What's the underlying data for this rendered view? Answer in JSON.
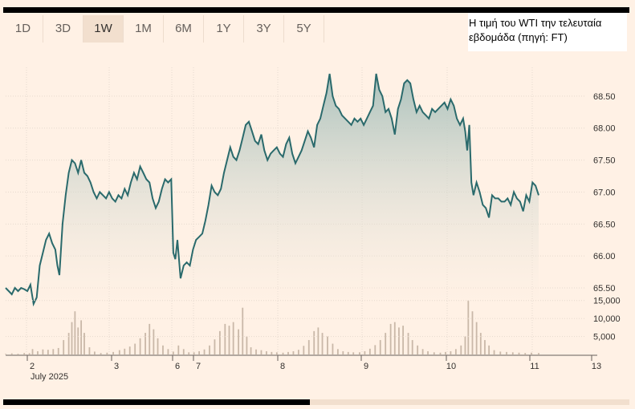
{
  "range_tabs": [
    "1D",
    "3D",
    "1W",
    "1M",
    "6M",
    "1Y",
    "3Y",
    "5Y"
  ],
  "active_tab": "1W",
  "caption": {
    "line1": "Η τιμή του WTI την τελευταία",
    "line2": "εβδομάδα (πηγή: FT)"
  },
  "colors": {
    "line": "#2a6a6c",
    "fill_top": "#a6bfba",
    "volume": "#c9b8a8",
    "accent_tab": "#f2dfce"
  },
  "chart_data": {
    "type": "area",
    "ylim": [
      65.35,
      68.95
    ],
    "y_ticks": [
      65.5,
      66.0,
      66.5,
      67.0,
      67.5,
      68.0,
      68.5
    ],
    "y_tick_labels": [
      "65.50",
      "66.00",
      "66.50",
      "67.00",
      "67.50",
      "68.00",
      "68.50"
    ],
    "x_tick_labels": [
      "2",
      "3",
      "6",
      "7",
      "8",
      "9",
      "10",
      "11",
      "13"
    ],
    "x_sub_label": "July 2025",
    "series": [
      {
        "points": [
          [
            0,
            65.5
          ],
          [
            1.5,
            65.45
          ],
          [
            3,
            65.4
          ],
          [
            4.5,
            65.5
          ],
          [
            6,
            65.45
          ],
          [
            7.5,
            65.5
          ],
          [
            9,
            65.48
          ],
          [
            10.5,
            65.45
          ],
          [
            12,
            65.55
          ],
          [
            13.5,
            65.25
          ],
          [
            15,
            65.35
          ],
          [
            16.5,
            65.85
          ],
          [
            18,
            66.05
          ],
          [
            19.5,
            66.25
          ],
          [
            21,
            66.35
          ],
          [
            22.5,
            66.2
          ],
          [
            24,
            66.1
          ],
          [
            25,
            65.85
          ],
          [
            26,
            65.7
          ],
          [
            27.5,
            66.5
          ],
          [
            29,
            66.95
          ],
          [
            30.5,
            67.3
          ],
          [
            32,
            67.5
          ],
          [
            33.5,
            67.45
          ],
          [
            35,
            67.3
          ],
          [
            36.5,
            67.5
          ],
          [
            38,
            67.3
          ],
          [
            39.5,
            67.25
          ],
          [
            41,
            67.15
          ],
          [
            42.5,
            67.0
          ],
          [
            44,
            66.9
          ],
          [
            45.5,
            67.0
          ],
          [
            47,
            66.95
          ],
          [
            48.5,
            66.9
          ],
          [
            50,
            67.0
          ],
          [
            51.5,
            66.9
          ],
          [
            53,
            66.85
          ],
          [
            54.5,
            66.95
          ],
          [
            56,
            66.9
          ],
          [
            57.5,
            67.05
          ],
          [
            59,
            66.95
          ],
          [
            60.5,
            67.15
          ],
          [
            62,
            67.3
          ],
          [
            63.5,
            67.2
          ],
          [
            65,
            67.4
          ],
          [
            66.5,
            67.3
          ],
          [
            68,
            67.2
          ],
          [
            69.5,
            67.15
          ],
          [
            71,
            66.9
          ],
          [
            72.5,
            66.75
          ],
          [
            74,
            66.85
          ],
          [
            75.5,
            67.05
          ],
          [
            77,
            67.2
          ],
          [
            78.5,
            67.15
          ],
          [
            80,
            67.2
          ],
          [
            81,
            66.05
          ],
          [
            82,
            65.95
          ],
          [
            83,
            66.25
          ],
          [
            84.5,
            65.65
          ],
          [
            86,
            65.85
          ],
          [
            87.5,
            65.9
          ],
          [
            89,
            65.85
          ],
          [
            90.5,
            66.1
          ],
          [
            92,
            66.25
          ],
          [
            93.5,
            66.3
          ],
          [
            95,
            66.35
          ],
          [
            96.5,
            66.55
          ],
          [
            98,
            66.8
          ],
          [
            99.5,
            67.1
          ],
          [
            101,
            67.0
          ],
          [
            102.5,
            66.95
          ],
          [
            104,
            67.05
          ],
          [
            105.5,
            67.3
          ],
          [
            107,
            67.5
          ],
          [
            108.5,
            67.7
          ],
          [
            110,
            67.55
          ],
          [
            111.5,
            67.5
          ],
          [
            113,
            67.65
          ],
          [
            114.5,
            67.85
          ],
          [
            116,
            68.05
          ],
          [
            117.5,
            68.1
          ],
          [
            119,
            67.95
          ],
          [
            120.5,
            67.8
          ],
          [
            122,
            67.75
          ],
          [
            123.5,
            67.9
          ],
          [
            125,
            67.65
          ],
          [
            126.5,
            67.5
          ],
          [
            128,
            67.6
          ],
          [
            129.5,
            67.65
          ],
          [
            131,
            67.7
          ],
          [
            132.5,
            67.6
          ],
          [
            134,
            67.55
          ],
          [
            135.5,
            67.75
          ],
          [
            137,
            67.85
          ],
          [
            138.5,
            67.6
          ],
          [
            140,
            67.45
          ],
          [
            141.5,
            67.55
          ],
          [
            143,
            67.65
          ],
          [
            144.5,
            67.8
          ],
          [
            146,
            67.95
          ],
          [
            147.5,
            67.85
          ],
          [
            149,
            67.7
          ],
          [
            150.5,
            68.05
          ],
          [
            152,
            68.15
          ],
          [
            153.5,
            68.35
          ],
          [
            155,
            68.55
          ],
          [
            156.5,
            68.85
          ],
          [
            158,
            68.5
          ],
          [
            159.5,
            68.35
          ],
          [
            161,
            68.3
          ],
          [
            162.5,
            68.2
          ],
          [
            164,
            68.15
          ],
          [
            165.5,
            68.1
          ],
          [
            167,
            68.05
          ],
          [
            168.5,
            68.15
          ],
          [
            170,
            68.1
          ],
          [
            171.5,
            68.15
          ],
          [
            173,
            68.05
          ],
          [
            174.5,
            68.15
          ],
          [
            176,
            68.25
          ],
          [
            177.5,
            68.35
          ],
          [
            179,
            68.85
          ],
          [
            180.5,
            68.6
          ],
          [
            182,
            68.5
          ],
          [
            183.5,
            68.25
          ],
          [
            185,
            68.3
          ],
          [
            186.5,
            68.15
          ],
          [
            188,
            67.9
          ],
          [
            189.5,
            68.3
          ],
          [
            191,
            68.45
          ],
          [
            192.5,
            68.7
          ],
          [
            194,
            68.75
          ],
          [
            195.5,
            68.7
          ],
          [
            197,
            68.45
          ],
          [
            198.5,
            68.25
          ],
          [
            200,
            68.35
          ],
          [
            201.5,
            68.25
          ],
          [
            203,
            68.2
          ],
          [
            204.5,
            68.15
          ],
          [
            206,
            68.3
          ],
          [
            207.5,
            68.25
          ],
          [
            209,
            68.3
          ],
          [
            210.5,
            68.35
          ],
          [
            212,
            68.4
          ],
          [
            213.5,
            68.3
          ],
          [
            215,
            68.45
          ],
          [
            216.5,
            68.35
          ],
          [
            218,
            68.15
          ],
          [
            219.5,
            68.05
          ],
          [
            221,
            68.15
          ],
          [
            222,
            67.95
          ],
          [
            223,
            67.65
          ],
          [
            224,
            68.05
          ],
          [
            225,
            67.15
          ],
          [
            226,
            66.95
          ],
          [
            227.5,
            67.15
          ],
          [
            229,
            67.0
          ],
          [
            230.5,
            66.8
          ],
          [
            232,
            66.75
          ],
          [
            233.5,
            66.6
          ],
          [
            235,
            66.95
          ],
          [
            236.5,
            66.9
          ],
          [
            238,
            66.9
          ],
          [
            239.5,
            66.85
          ],
          [
            241,
            66.85
          ],
          [
            242.5,
            66.9
          ],
          [
            244,
            66.8
          ],
          [
            245.5,
            67.0
          ],
          [
            247,
            66.9
          ],
          [
            248.5,
            66.85
          ],
          [
            250,
            66.7
          ],
          [
            251.5,
            66.95
          ],
          [
            253,
            66.85
          ],
          [
            254.5,
            67.15
          ],
          [
            256,
            67.1
          ],
          [
            257.5,
            66.95
          ]
        ],
        "volume": [
          [
            0,
            150
          ],
          [
            3,
            300
          ],
          [
            6,
            200
          ],
          [
            9,
            400
          ],
          [
            11.5,
            350
          ],
          [
            13,
            1500
          ],
          [
            15.5,
            900
          ],
          [
            18,
            1400
          ],
          [
            20.5,
            1300
          ],
          [
            23,
            1500
          ],
          [
            25.5,
            1800
          ],
          [
            28,
            4000
          ],
          [
            30.5,
            6000
          ],
          [
            32,
            9000
          ],
          [
            33.5,
            12000
          ],
          [
            35,
            7500
          ],
          [
            36.5,
            9500
          ],
          [
            38,
            6000
          ],
          [
            40.5,
            2000
          ],
          [
            43,
            800
          ],
          [
            46,
            400
          ],
          [
            49,
            500
          ],
          [
            52,
            700
          ],
          [
            55,
            1200
          ],
          [
            57.5,
            1600
          ],
          [
            60,
            2200
          ],
          [
            62.5,
            3000
          ],
          [
            65,
            4500
          ],
          [
            67.5,
            6000
          ],
          [
            69.5,
            8500
          ],
          [
            71.5,
            7000
          ],
          [
            73.5,
            4500
          ],
          [
            76,
            2500
          ],
          [
            78.5,
            1500
          ],
          [
            81,
            800
          ],
          [
            83.5,
            2500
          ],
          [
            86,
            1500
          ],
          [
            88.5,
            600
          ],
          [
            91,
            600
          ],
          [
            93.5,
            900
          ],
          [
            96,
            1400
          ],
          [
            98.5,
            2500
          ],
          [
            101,
            4200
          ],
          [
            103.5,
            6500
          ],
          [
            106,
            8500
          ],
          [
            108,
            8000
          ],
          [
            110,
            9000
          ],
          [
            112.5,
            7000
          ],
          [
            114.5,
            13000
          ],
          [
            116.5,
            5000
          ],
          [
            118.5,
            2000
          ],
          [
            121,
            1400
          ],
          [
            123.5,
            1200
          ],
          [
            126,
            900
          ],
          [
            128.5,
            700
          ],
          [
            131,
            600
          ],
          [
            134,
            500
          ],
          [
            136.5,
            700
          ],
          [
            139,
            900
          ],
          [
            141.5,
            1300
          ],
          [
            144,
            2400
          ],
          [
            146.5,
            4000
          ],
          [
            149,
            6500
          ],
          [
            151,
            7500
          ],
          [
            153,
            6000
          ],
          [
            155.5,
            5000
          ],
          [
            158,
            3000
          ],
          [
            160.5,
            1500
          ],
          [
            163,
            900
          ],
          [
            165.5,
            700
          ],
          [
            168,
            600
          ],
          [
            171,
            600
          ],
          [
            173.5,
            900
          ],
          [
            176,
            1600
          ],
          [
            178.5,
            2600
          ],
          [
            181,
            4000
          ],
          [
            183.5,
            6000
          ],
          [
            186,
            8500
          ],
          [
            188,
            9000
          ],
          [
            190,
            7500
          ],
          [
            192,
            8000
          ],
          [
            194.5,
            6000
          ],
          [
            196.5,
            4000
          ],
          [
            199,
            2500
          ],
          [
            201.5,
            1500
          ],
          [
            204,
            900
          ],
          [
            207,
            600
          ],
          [
            210,
            500
          ],
          [
            212.5,
            700
          ],
          [
            215,
            900
          ],
          [
            217.5,
            1500
          ],
          [
            220,
            2500
          ],
          [
            222,
            5000
          ],
          [
            223.5,
            15000
          ],
          [
            225.5,
            12000
          ],
          [
            227.5,
            9000
          ],
          [
            229.5,
            6000
          ],
          [
            231.5,
            4000
          ],
          [
            233.5,
            2500
          ],
          [
            236,
            1200
          ],
          [
            239,
            800
          ],
          [
            242,
            700
          ],
          [
            245,
            600
          ],
          [
            248,
            500
          ],
          [
            251,
            400
          ],
          [
            254,
            500
          ],
          [
            257.5,
            400
          ]
        ],
        "volume_ticks": [
          5000,
          10000,
          15000
        ],
        "volume_tick_labels": [
          "5,000",
          "10,000",
          "15,000"
        ]
      }
    ]
  }
}
